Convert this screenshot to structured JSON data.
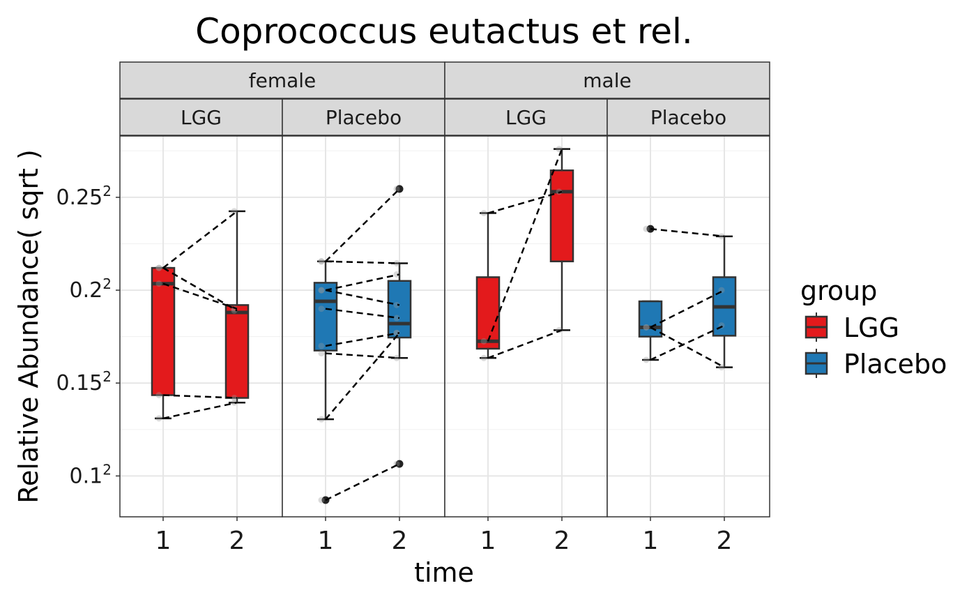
{
  "chart_data": {
    "type": "boxplot",
    "title": "Coprococcus eutactus et rel.",
    "xlabel": "time",
    "ylabel": "Relative Abundance( sqrt )",
    "y_scale": "sqrt",
    "ylim_sqrt": [
      0.078,
      0.283
    ],
    "y_ticks": [
      {
        "value": 0.1,
        "label": "0.1",
        "sup": "2"
      },
      {
        "value": 0.15,
        "label": "0.15",
        "sup": "2"
      },
      {
        "value": 0.2,
        "label": "0.2",
        "sup": "2"
      },
      {
        "value": 0.25,
        "label": "0.25",
        "sup": "2"
      }
    ],
    "x_categories": [
      "1",
      "2"
    ],
    "grid": true,
    "legend": {
      "title": "group",
      "position": "right",
      "entries": [
        {
          "name": "LGG",
          "color": "#E31A1C"
        },
        {
          "name": "Placebo",
          "color": "#1F78B4"
        }
      ]
    },
    "facets": [
      {
        "sex": "female",
        "group": "LGG",
        "color": "#E31A1C",
        "boxes": [
          {
            "x": "1",
            "min": 0.131,
            "q1": 0.1435,
            "median": 0.2035,
            "q3": 0.212,
            "max": 0.212,
            "outliers": []
          },
          {
            "x": "2",
            "min": 0.1395,
            "q1": 0.142,
            "median": 0.188,
            "q3": 0.192,
            "max": 0.2425,
            "outliers": []
          }
        ],
        "pairs": [
          [
            0.212,
            0.2425
          ],
          [
            0.212,
            0.189
          ],
          [
            0.2035,
            0.19
          ],
          [
            0.1435,
            0.142
          ],
          [
            0.131,
            0.1395
          ]
        ]
      },
      {
        "sex": "female",
        "group": "Placebo",
        "color": "#1F78B4",
        "boxes": [
          {
            "x": "1",
            "min": 0.1305,
            "q1": 0.1675,
            "median": 0.194,
            "q3": 0.204,
            "max": 0.2155,
            "outliers": [
              0.087
            ]
          },
          {
            "x": "2",
            "min": 0.1635,
            "q1": 0.1745,
            "median": 0.182,
            "q3": 0.205,
            "max": 0.2145,
            "outliers": [
              0.2545,
              0.1065
            ]
          }
        ],
        "pairs": [
          [
            0.2155,
            0.2545
          ],
          [
            0.2155,
            0.2145
          ],
          [
            0.2,
            0.2085
          ],
          [
            0.2,
            0.192
          ],
          [
            0.19,
            0.185
          ],
          [
            0.17,
            0.177
          ],
          [
            0.166,
            0.1635
          ],
          [
            0.1305,
            0.177
          ],
          [
            0.087,
            0.1065
          ]
        ]
      },
      {
        "sex": "male",
        "group": "LGG",
        "color": "#E31A1C",
        "boxes": [
          {
            "x": "1",
            "min": 0.1635,
            "q1": 0.1685,
            "median": 0.1725,
            "q3": 0.207,
            "max": 0.2415,
            "outliers": []
          },
          {
            "x": "2",
            "min": 0.1785,
            "q1": 0.2155,
            "median": 0.253,
            "q3": 0.2645,
            "max": 0.276,
            "outliers": []
          }
        ],
        "pairs": [
          [
            0.2415,
            0.253
          ],
          [
            0.1725,
            0.276
          ],
          [
            0.1635,
            0.1785
          ]
        ]
      },
      {
        "sex": "male",
        "group": "Placebo",
        "color": "#1F78B4",
        "boxes": [
          {
            "x": "1",
            "min": 0.1625,
            "q1": 0.175,
            "median": 0.18,
            "q3": 0.194,
            "max": 0.194,
            "outliers": [
              0.233
            ]
          },
          {
            "x": "2",
            "min": 0.1585,
            "q1": 0.1755,
            "median": 0.191,
            "q3": 0.207,
            "max": 0.229,
            "outliers": []
          }
        ],
        "pairs": [
          [
            0.233,
            0.229
          ],
          [
            0.18,
            0.2
          ],
          [
            0.18,
            0.1585
          ],
          [
            0.1625,
            0.181
          ]
        ]
      }
    ]
  }
}
